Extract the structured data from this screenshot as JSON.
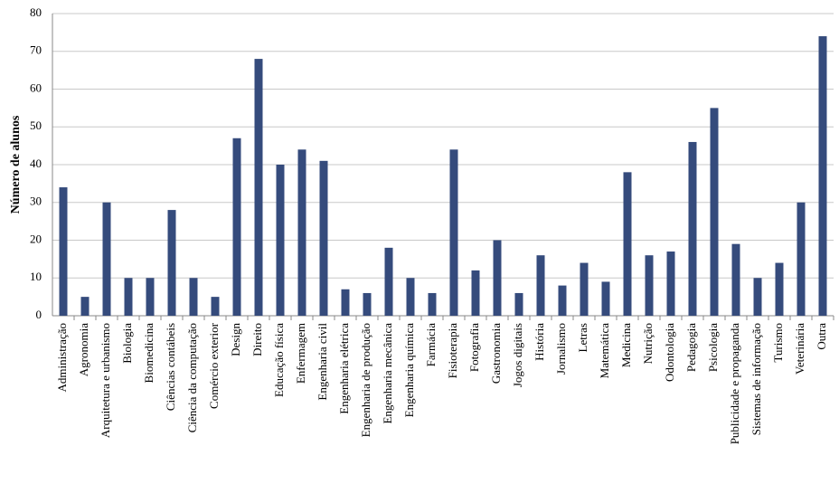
{
  "chart_data": {
    "type": "bar",
    "y_label": "Número de alunos",
    "categories": [
      "Administração",
      "Agronomia",
      "Arquitetura e urbanismo",
      "Biologia",
      "Biomedicina",
      "Ciências contábeis",
      "Ciência da computação",
      "Comércio exterior",
      "Design",
      "Direito",
      "Educação física",
      "Enfermagem",
      "Engenharia civil",
      "Engenharia elétrica",
      "Engenharia de produção",
      "Engenharia mecânica",
      "Engenharia química",
      "Farmácia",
      "Fisioterapia",
      "Fotografia",
      "Gastronomia",
      "Jogos digitais",
      "História",
      "Jornalismo",
      "Letras",
      "Matemática",
      "Medicina",
      "Nutrição",
      "Odontologia",
      "Pedagogia",
      "Psicologia",
      "Publicidade e propaganda",
      "Sistemas de informação",
      "Turismo",
      "Veterinária",
      "Outra"
    ],
    "values": [
      34,
      5,
      30,
      10,
      10,
      28,
      10,
      5,
      47,
      68,
      40,
      44,
      41,
      7,
      6,
      18,
      10,
      6,
      44,
      12,
      20,
      6,
      16,
      8,
      14,
      9,
      38,
      16,
      17,
      46,
      55,
      19,
      10,
      14,
      30,
      74
    ],
    "color": "#354b7c",
    "ylim": [
      0,
      80
    ],
    "yticks": [
      0,
      10,
      20,
      30,
      40,
      50,
      60,
      70,
      80
    ],
    "grid": true
  }
}
